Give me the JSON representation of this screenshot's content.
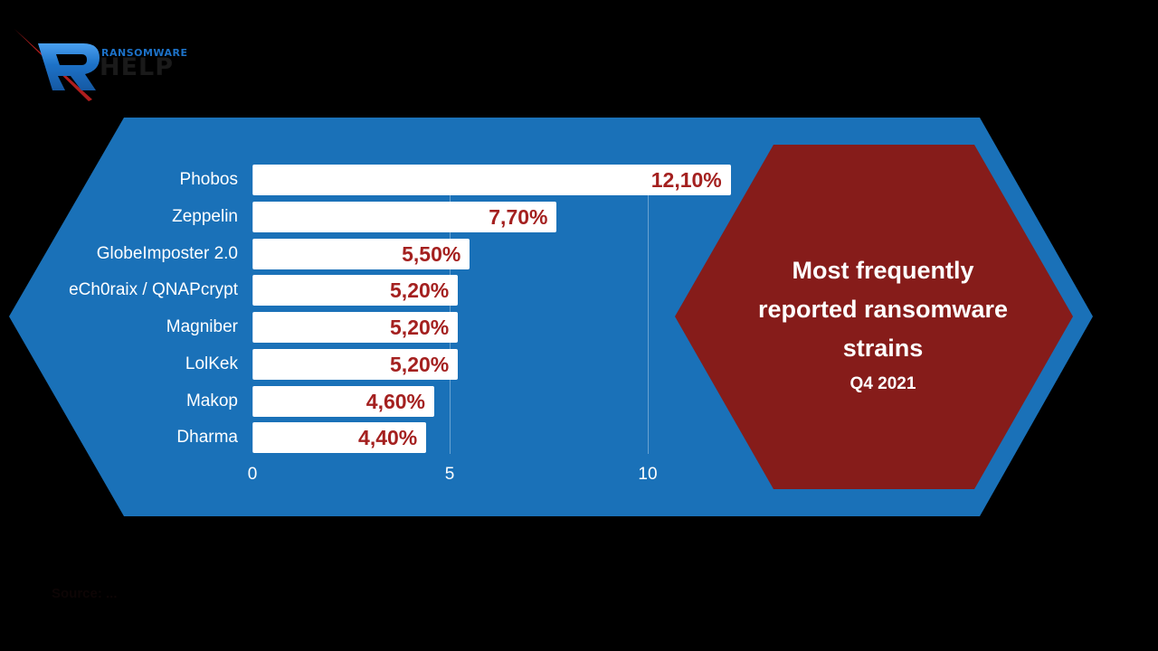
{
  "logo": {
    "brand_top": "RANSOMWARE",
    "brand_main": "HELP",
    "icon": "r-logo-icon",
    "colors": {
      "blue": "#1d72c8",
      "red": "#b01e1e",
      "dark": "#1a1a1a"
    }
  },
  "panel": {
    "title": "Most frequently reported ransomware strains",
    "title_lines": [
      "Most frequently",
      "reported ransomware",
      "strains"
    ],
    "period": "Q4 2021"
  },
  "colors": {
    "background": "#000000",
    "outer_hexagon": "#1a71b8",
    "inner_hexagon": "#861c1a",
    "bar": "#ffffff",
    "value_label": "#a4201f",
    "axis_text": "#ffffff"
  },
  "source": "Source: ...",
  "chart_data": {
    "type": "bar",
    "orientation": "horizontal",
    "title": "Most frequently reported ransomware strains",
    "subtitle": "Q4 2021",
    "categories": [
      "Phobos",
      "Zeppelin",
      "GlobeImposter 2.0",
      "eCh0raix / QNAPcrypt",
      "Magniber",
      "LolKek",
      "Makop",
      "Dharma"
    ],
    "values": [
      12.1,
      7.7,
      5.5,
      5.2,
      5.2,
      5.2,
      4.6,
      4.4
    ],
    "value_labels": [
      "12,10%",
      "7,70%",
      "5,50%",
      "5,20%",
      "5,20%",
      "5,20%",
      "4,60%",
      "4,40%"
    ],
    "xlabel": "",
    "ylabel": "",
    "x_ticks": [
      "0",
      "5",
      "10"
    ],
    "xlim": [
      0,
      12.1
    ],
    "grid": true,
    "legend": "none",
    "unit": "%"
  }
}
